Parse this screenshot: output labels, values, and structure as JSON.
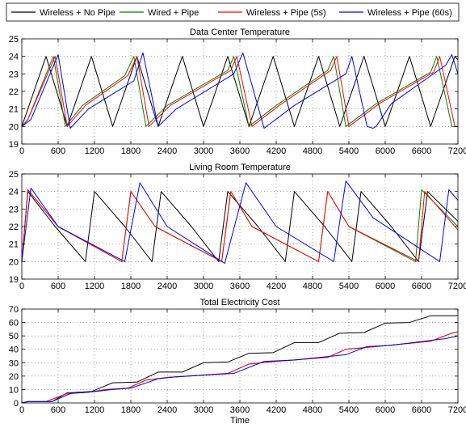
{
  "legend": {
    "entries": [
      {
        "label": "Wireless + No Pipe",
        "color": "#000000"
      },
      {
        "label": "Wired + Pipe",
        "color": "#008000"
      },
      {
        "label": "Wireless + Pipe (5s)",
        "color": "#ff0000"
      },
      {
        "label": "Wireless + Pipe (60s)",
        "color": "#0000ff"
      }
    ],
    "placement": "top"
  },
  "chart_data": [
    {
      "type": "line",
      "title": "Data Center Temperature",
      "xlabel": "",
      "ylabel": "",
      "xlim": [
        0,
        7200
      ],
      "ylim": [
        19,
        25
      ],
      "xticks": [
        0,
        600,
        1200,
        1800,
        2400,
        3000,
        3600,
        4200,
        4800,
        5400,
        6000,
        6600,
        7200
      ],
      "yticks": [
        19,
        20,
        21,
        22,
        23,
        24,
        25
      ],
      "grid": true,
      "series": [
        {
          "name": "Wireless + No Pipe",
          "color": "#000000",
          "points": [
            [
              0,
              20
            ],
            [
              400,
              24
            ],
            [
              750,
              20
            ],
            [
              1150,
              24
            ],
            [
              1500,
              20
            ],
            [
              1900,
              24
            ],
            [
              2250,
              20
            ],
            [
              2650,
              24
            ],
            [
              3000,
              20
            ],
            [
              3400,
              24
            ],
            [
              3750,
              20
            ],
            [
              4150,
              24
            ],
            [
              4500,
              20
            ],
            [
              4900,
              24
            ],
            [
              5250,
              20
            ],
            [
              5650,
              24
            ],
            [
              6000,
              20
            ],
            [
              6400,
              24
            ],
            [
              6750,
              20
            ],
            [
              7150,
              24
            ],
            [
              7200,
              23.8
            ]
          ]
        },
        {
          "name": "Wired + Pipe",
          "color": "#008000",
          "points": [
            [
              0,
              20
            ],
            [
              100,
              20.4
            ],
            [
              520,
              24
            ],
            [
              720,
              20
            ],
            [
              1000,
              21.2
            ],
            [
              1700,
              22.9
            ],
            [
              1850,
              24
            ],
            [
              2050,
              20
            ],
            [
              2400,
              21.2
            ],
            [
              3400,
              23.2
            ],
            [
              3500,
              24
            ],
            [
              3750,
              20
            ],
            [
              4200,
              21.2
            ],
            [
              5050,
              23.2
            ],
            [
              5150,
              24
            ],
            [
              5350,
              20
            ],
            [
              5850,
              21.3
            ],
            [
              6750,
              23.1
            ],
            [
              6850,
              24
            ],
            [
              7100,
              20
            ],
            [
              7200,
              20
            ]
          ]
        },
        {
          "name": "Wireless + Pipe (5s)",
          "color": "#ff0000",
          "points": [
            [
              0,
              20
            ],
            [
              100,
              20.4
            ],
            [
              550,
              24
            ],
            [
              750,
              20
            ],
            [
              1050,
              21.2
            ],
            [
              1750,
              22.9
            ],
            [
              1900,
              24
            ],
            [
              2100,
              20
            ],
            [
              2450,
              21.2
            ],
            [
              3450,
              23.2
            ],
            [
              3550,
              24
            ],
            [
              3800,
              20
            ],
            [
              4250,
              21.2
            ],
            [
              5100,
              23.2
            ],
            [
              5200,
              24
            ],
            [
              5400,
              20
            ],
            [
              5900,
              21.3
            ],
            [
              6800,
              23.1
            ],
            [
              6900,
              24
            ],
            [
              7150,
              20
            ],
            [
              7200,
              20
            ]
          ]
        },
        {
          "name": "Wireless + Pipe (60s)",
          "color": "#0000ff",
          "points": [
            [
              0,
              20
            ],
            [
              150,
              20.4
            ],
            [
              600,
              24.1
            ],
            [
              800,
              19.9
            ],
            [
              1100,
              21
            ],
            [
              1850,
              22.6
            ],
            [
              2000,
              24.2
            ],
            [
              2250,
              20
            ],
            [
              2550,
              21
            ],
            [
              3500,
              23
            ],
            [
              3650,
              24.2
            ],
            [
              4000,
              19.9
            ],
            [
              4500,
              21.2
            ],
            [
              5350,
              23
            ],
            [
              5450,
              24
            ],
            [
              5700,
              20
            ],
            [
              5800,
              19.9
            ],
            [
              5850,
              20
            ],
            [
              6100,
              21.3
            ],
            [
              7000,
              23.5
            ],
            [
              7100,
              24.1
            ],
            [
              7200,
              23
            ]
          ]
        }
      ]
    },
    {
      "type": "line",
      "title": "Living Room Temperature",
      "xlabel": "",
      "ylabel": "",
      "xlim": [
        0,
        7200
      ],
      "ylim": [
        19,
        25
      ],
      "xticks": [
        0,
        600,
        1200,
        1800,
        2400,
        3000,
        3600,
        4200,
        4800,
        5400,
        6000,
        6600,
        7200
      ],
      "yticks": [
        19,
        20,
        21,
        22,
        23,
        24,
        25
      ],
      "grid": true,
      "series": [
        {
          "name": "Wireless + No Pipe",
          "color": "#000000",
          "points": [
            [
              0,
              20
            ],
            [
              100,
              24
            ],
            [
              550,
              22
            ],
            [
              1050,
              20
            ],
            [
              1200,
              24
            ],
            [
              1700,
              22
            ],
            [
              2150,
              20
            ],
            [
              2300,
              24
            ],
            [
              2800,
              22
            ],
            [
              3250,
              20
            ],
            [
              3400,
              24
            ],
            [
              3900,
              22
            ],
            [
              4350,
              20
            ],
            [
              4500,
              24
            ],
            [
              5000,
              22
            ],
            [
              5450,
              20
            ],
            [
              5600,
              24
            ],
            [
              6100,
              22
            ],
            [
              6550,
              20
            ],
            [
              6700,
              24
            ],
            [
              7200,
              22.3
            ]
          ]
        },
        {
          "name": "Wired + Pipe",
          "color": "#008000",
          "points": [
            [
              0,
              20
            ],
            [
              100,
              24.1
            ],
            [
              600,
              22
            ],
            [
              1650,
              20
            ],
            [
              1800,
              24
            ],
            [
              2200,
              22
            ],
            [
              3300,
              20
            ],
            [
              3450,
              24
            ],
            [
              3800,
              22
            ],
            [
              4900,
              20
            ],
            [
              5050,
              24
            ],
            [
              5400,
              22
            ],
            [
              6500,
              20
            ],
            [
              6600,
              24.1
            ],
            [
              7200,
              22
            ]
          ]
        },
        {
          "name": "Wireless + Pipe (5s)",
          "color": "#ff0000",
          "points": [
            [
              0,
              20
            ],
            [
              100,
              24.1
            ],
            [
              600,
              22
            ],
            [
              1650,
              20
            ],
            [
              1800,
              24
            ],
            [
              2200,
              22
            ],
            [
              3300,
              20
            ],
            [
              3450,
              24
            ],
            [
              3800,
              22
            ],
            [
              4900,
              20
            ],
            [
              5050,
              24
            ],
            [
              5400,
              22
            ],
            [
              6550,
              20
            ],
            [
              6650,
              24
            ],
            [
              7200,
              21.8
            ]
          ]
        },
        {
          "name": "Wireless + Pipe (60s)",
          "color": "#0000ff",
          "points": [
            [
              0,
              20
            ],
            [
              150,
              24.2
            ],
            [
              600,
              22
            ],
            [
              1700,
              20
            ],
            [
              1950,
              24.5
            ],
            [
              2400,
              22
            ],
            [
              3350,
              19.9
            ],
            [
              3700,
              24.5
            ],
            [
              4200,
              22
            ],
            [
              5150,
              20
            ],
            [
              5350,
              24.6
            ],
            [
              5800,
              22.5
            ],
            [
              6900,
              20
            ],
            [
              7050,
              24.1
            ],
            [
              7200,
              23.5
            ]
          ]
        }
      ]
    },
    {
      "type": "line",
      "title": "Total Electricity Cost",
      "xlabel": "Time",
      "ylabel": "",
      "xlim": [
        0,
        7200
      ],
      "ylim": [
        0,
        70
      ],
      "xticks": [
        0,
        600,
        1200,
        1800,
        2400,
        3000,
        3600,
        4200,
        4800,
        5400,
        6000,
        6600,
        7200
      ],
      "yticks": [
        0,
        10,
        20,
        30,
        40,
        50,
        60,
        70
      ],
      "grid": true,
      "series": [
        {
          "name": "Wireless + No Pipe",
          "color": "#000000",
          "points": [
            [
              0,
              0
            ],
            [
              100,
              1
            ],
            [
              500,
              1
            ],
            [
              750,
              7.5
            ],
            [
              1150,
              8.5
            ],
            [
              1500,
              15
            ],
            [
              1900,
              15.5
            ],
            [
              2250,
              23
            ],
            [
              2650,
              23
            ],
            [
              3000,
              30
            ],
            [
              3400,
              30.5
            ],
            [
              3750,
              37
            ],
            [
              4150,
              37.5
            ],
            [
              4500,
              45
            ],
            [
              4900,
              45
            ],
            [
              5250,
              52
            ],
            [
              5650,
              52.5
            ],
            [
              6000,
              59.5
            ],
            [
              6400,
              60
            ],
            [
              6750,
              65
            ],
            [
              7200,
              65
            ]
          ]
        },
        {
          "name": "Wired + Pipe",
          "color": "#008000",
          "points": [
            [
              0,
              0
            ],
            [
              100,
              1
            ],
            [
              400,
              1
            ],
            [
              750,
              7
            ],
            [
              1100,
              8
            ],
            [
              1400,
              10
            ],
            [
              1750,
              11
            ],
            [
              2050,
              17
            ],
            [
              2400,
              19
            ],
            [
              3400,
              22
            ],
            [
              3750,
              29
            ],
            [
              4200,
              31
            ],
            [
              5050,
              34
            ],
            [
              5350,
              40
            ],
            [
              5850,
              42
            ],
            [
              6750,
              46
            ],
            [
              7100,
              52
            ],
            [
              7200,
              53
            ]
          ]
        },
        {
          "name": "Wireless + Pipe (5s)",
          "color": "#ff0000",
          "points": [
            [
              0,
              0
            ],
            [
              100,
              1
            ],
            [
              400,
              1
            ],
            [
              750,
              7
            ],
            [
              1100,
              8
            ],
            [
              1400,
              10
            ],
            [
              1750,
              11
            ],
            [
              2050,
              17
            ],
            [
              2400,
              19
            ],
            [
              3400,
              22
            ],
            [
              3750,
              29
            ],
            [
              4200,
              31
            ],
            [
              5050,
              34
            ],
            [
              5350,
              40
            ],
            [
              5850,
              42
            ],
            [
              6750,
              46
            ],
            [
              7100,
              52
            ],
            [
              7200,
              53
            ]
          ]
        },
        {
          "name": "Wireless + Pipe (60s)",
          "color": "#0000ff",
          "points": [
            [
              0,
              0
            ],
            [
              100,
              1
            ],
            [
              500,
              1
            ],
            [
              800,
              7
            ],
            [
              1100,
              8
            ],
            [
              1500,
              10
            ],
            [
              1800,
              11
            ],
            [
              2250,
              18
            ],
            [
              2550,
              19.5
            ],
            [
              3500,
              22
            ],
            [
              4000,
              31
            ],
            [
              4500,
              32
            ],
            [
              5350,
              36
            ],
            [
              5700,
              42
            ],
            [
              6100,
              43
            ],
            [
              7000,
              48
            ],
            [
              7200,
              50
            ]
          ]
        }
      ]
    }
  ]
}
